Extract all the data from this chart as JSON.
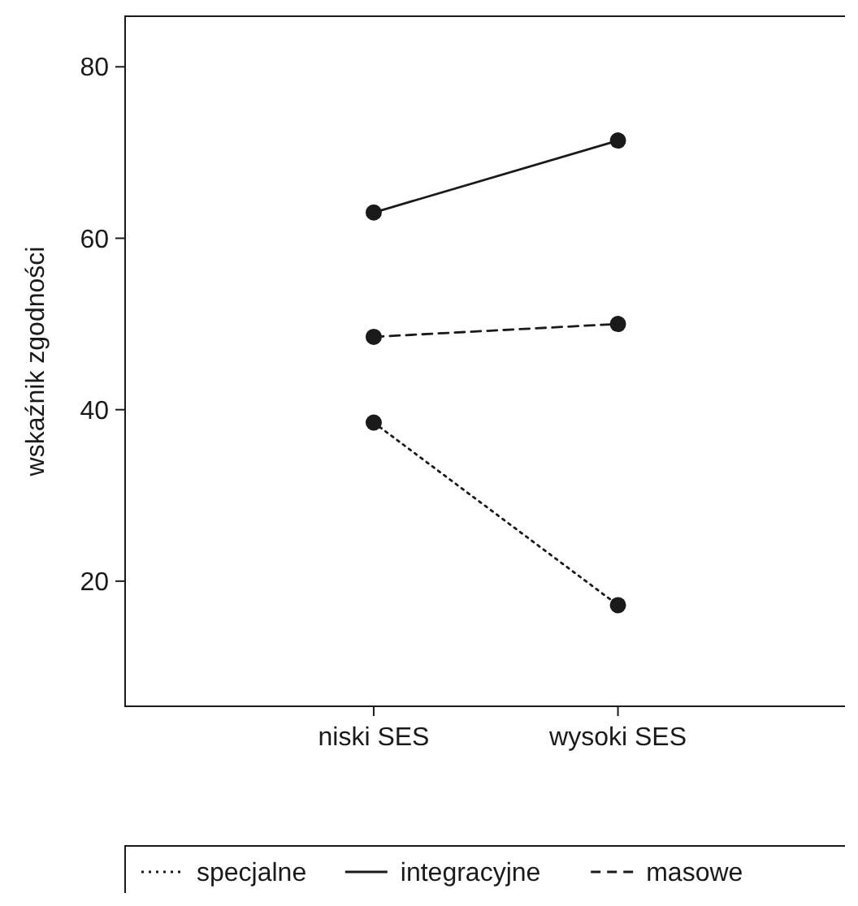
{
  "chart_data": {
    "type": "line",
    "ylabel": "wskaźnik zgodności",
    "categories": [
      "niski SES",
      "wysoki SES"
    ],
    "series": [
      {
        "name": "specjalne",
        "color": "#1a1a1a",
        "line_style": "dotted",
        "values": [
          38.5,
          17.2
        ]
      },
      {
        "name": "integracyjne",
        "color": "#1a1a1a",
        "line_style": "solid",
        "values": [
          63,
          71.4
        ]
      },
      {
        "name": "masowe",
        "color": "#1a1a1a",
        "line_style": "dashed",
        "values": [
          48.5,
          50
        ]
      }
    ],
    "ylim": [
      5.4,
      85.9
    ],
    "yticks": [
      20,
      40,
      60,
      80
    ],
    "marker": "circle",
    "legend": "bottom",
    "grid": false
  }
}
